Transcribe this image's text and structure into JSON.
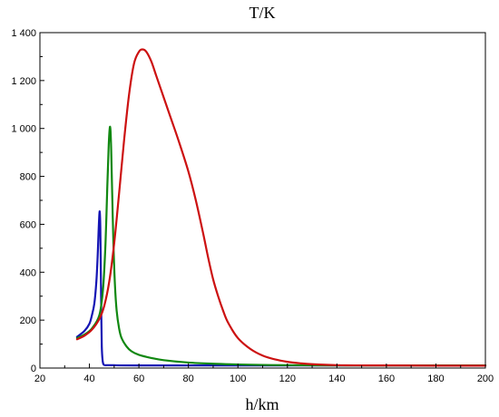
{
  "chart_data": {
    "type": "line",
    "title": "T/K",
    "xlabel": "h/km",
    "ylabel": "",
    "xlim": [
      20,
      200
    ],
    "ylim": [
      0,
      1400
    ],
    "grid": false,
    "legend": "none",
    "x_ticks": [
      20,
      40,
      60,
      80,
      100,
      120,
      140,
      160,
      180,
      200
    ],
    "x_tick_labels": [
      "20",
      "40",
      "60",
      "80",
      "100",
      "120",
      "140",
      "160",
      "180",
      "200"
    ],
    "y_ticks": [
      0,
      200,
      400,
      600,
      800,
      1000,
      1200,
      1400
    ],
    "y_tick_labels": [
      "0",
      "200",
      "400",
      "600",
      "800",
      "1 000",
      "1 200",
      "1 400"
    ],
    "series": [
      {
        "color": "#1414b4",
        "x": [
          35,
          38,
          40,
          41,
          42,
          42.8,
          43.3,
          43.7,
          44.0,
          44.2,
          44.4,
          44.6,
          44.8,
          45.0,
          45.3,
          45.7,
          46.5,
          48,
          60,
          100,
          200
        ],
        "y": [
          130,
          155,
          185,
          220,
          270,
          360,
          460,
          570,
          640,
          650,
          590,
          420,
          220,
          90,
          35,
          15,
          12,
          12,
          11,
          11,
          11
        ]
      },
      {
        "color": "#118811",
        "x": [
          35,
          38,
          41,
          44,
          45.5,
          46.5,
          47.2,
          47.8,
          48.2,
          48.5,
          48.8,
          49.2,
          49.7,
          50.3,
          51,
          52,
          53,
          55,
          57,
          60,
          65,
          70,
          80,
          90,
          100,
          110,
          120,
          140,
          160,
          200
        ],
        "y": [
          125,
          140,
          165,
          220,
          330,
          520,
          750,
          930,
          1000,
          995,
          910,
          730,
          520,
          350,
          240,
          165,
          125,
          90,
          70,
          55,
          42,
          33,
          23,
          18,
          15,
          13,
          12,
          11,
          11,
          11
        ]
      },
      {
        "color": "#cc1111",
        "x": [
          35,
          38,
          41,
          44,
          46,
          48,
          50,
          52,
          54,
          56,
          58,
          60,
          61.5,
          63,
          65,
          67,
          70,
          73,
          76,
          80,
          83,
          86,
          88,
          90,
          92,
          94,
          96,
          100,
          105,
          110,
          115,
          120,
          125,
          130,
          140,
          150,
          160,
          180,
          200
        ],
        "y": [
          120,
          135,
          160,
          205,
          260,
          360,
          520,
          730,
          950,
          1140,
          1270,
          1320,
          1330,
          1320,
          1280,
          1220,
          1130,
          1040,
          950,
          820,
          700,
          560,
          460,
          370,
          300,
          240,
          190,
          125,
          80,
          52,
          36,
          26,
          20,
          16,
          12,
          11,
          11,
          10,
          10
        ]
      }
    ]
  }
}
